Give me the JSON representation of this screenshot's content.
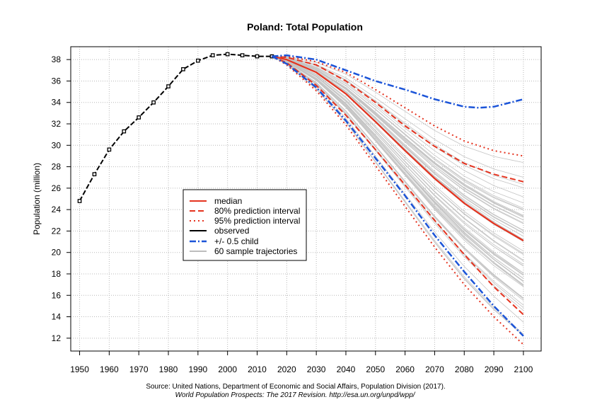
{
  "chart_data": {
    "type": "line",
    "title": "Poland: Total Population",
    "xlabel": "",
    "ylabel": "Population (million)",
    "xlim": [
      1947,
      2106
    ],
    "ylim": [
      10.8,
      39.2
    ],
    "x_ticks": [
      "1950",
      "1960",
      "1970",
      "1980",
      "1990",
      "2000",
      "2010",
      "2020",
      "2030",
      "2040",
      "2050",
      "2060",
      "2070",
      "2080",
      "2090",
      "2100"
    ],
    "y_ticks": [
      "12",
      "14",
      "16",
      "18",
      "20",
      "22",
      "24",
      "26",
      "28",
      "30",
      "32",
      "34",
      "36",
      "38"
    ],
    "grid": true,
    "legend_position": "center-left",
    "legend": [
      "median",
      "80% prediction interval",
      "95% prediction interval",
      "observed",
      "+/- 0.5 child",
      "60 sample trajectories"
    ],
    "colors": {
      "median": "#e5331f",
      "interval": "#e5331f",
      "observed": "#000000",
      "half_child": "#1b54d8",
      "trajectories": "#bdbdbd"
    },
    "series": [
      {
        "name": "observed",
        "x": [
          1950,
          1955,
          1960,
          1965,
          1970,
          1975,
          1980,
          1985,
          1990,
          1995,
          2000,
          2005,
          2010,
          2015
        ],
        "values": [
          24.8,
          27.3,
          29.6,
          31.3,
          32.6,
          34.0,
          35.5,
          37.1,
          37.9,
          38.4,
          38.5,
          38.4,
          38.3,
          38.3
        ]
      },
      {
        "name": "median",
        "x": [
          2015,
          2020,
          2030,
          2040,
          2050,
          2060,
          2070,
          2080,
          2090,
          2100
        ],
        "values": [
          38.3,
          38.0,
          36.8,
          34.8,
          32.2,
          29.5,
          26.9,
          24.6,
          22.7,
          21.1
        ]
      },
      {
        "name": "80% prediction interval upper",
        "x": [
          2015,
          2020,
          2030,
          2040,
          2050,
          2060,
          2070,
          2080,
          2090,
          2100
        ],
        "values": [
          38.3,
          38.2,
          37.5,
          36.0,
          34.0,
          31.8,
          29.9,
          28.3,
          27.3,
          26.6
        ]
      },
      {
        "name": "80% prediction interval lower",
        "x": [
          2015,
          2020,
          2030,
          2040,
          2050,
          2060,
          2070,
          2080,
          2090,
          2100
        ],
        "values": [
          38.3,
          37.7,
          35.6,
          32.8,
          29.6,
          26.3,
          23.0,
          19.8,
          16.8,
          14.2
        ]
      },
      {
        "name": "95% prediction interval upper",
        "x": [
          2015,
          2020,
          2030,
          2040,
          2050,
          2060,
          2070,
          2080,
          2090,
          2100
        ],
        "values": [
          38.3,
          38.3,
          37.8,
          36.8,
          35.2,
          33.5,
          31.8,
          30.4,
          29.5,
          29.0
        ]
      },
      {
        "name": "95% prediction interval lower",
        "x": [
          2015,
          2020,
          2030,
          2040,
          2050,
          2060,
          2070,
          2080,
          2090,
          2100
        ],
        "values": [
          38.3,
          37.5,
          35.1,
          31.9,
          28.1,
          24.3,
          20.5,
          17.0,
          14.0,
          11.4
        ]
      },
      {
        "name": "+/- 0.5 child upper",
        "x": [
          2015,
          2020,
          2030,
          2040,
          2050,
          2060,
          2070,
          2080,
          2085,
          2090,
          2100
        ],
        "values": [
          38.3,
          38.4,
          38.0,
          37.0,
          36.0,
          35.2,
          34.3,
          33.6,
          33.5,
          33.6,
          34.3
        ]
      },
      {
        "name": "+/- 0.5 child lower",
        "x": [
          2015,
          2020,
          2030,
          2040,
          2050,
          2060,
          2070,
          2080,
          2090,
          2100
        ],
        "values": [
          38.3,
          37.6,
          35.4,
          32.3,
          28.8,
          25.3,
          21.6,
          18.2,
          15.0,
          12.2
        ]
      }
    ],
    "source": "Source: United Nations, Department of Economic and Social Affairs, Population Division (2017).",
    "source_citation": "World Population Prospects: The 2017 Revision. http://esa.un.org/unpd/wpp/"
  }
}
